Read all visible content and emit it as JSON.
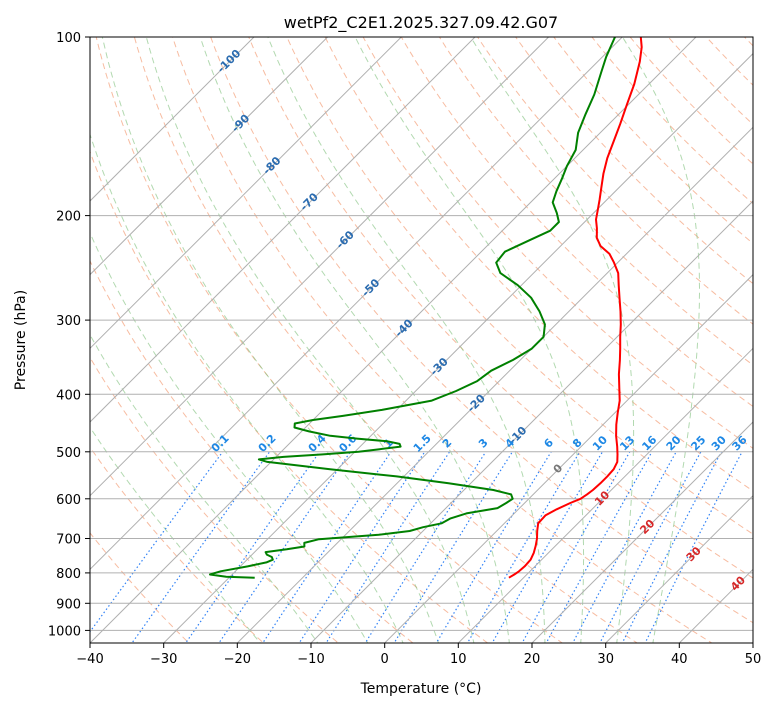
{
  "chart_data": {
    "type": "line",
    "subtype": "skew-t log-p",
    "title": "wetPf2_C2E1.2025.327.09.42.G07",
    "xlabel": "Temperature (°C)",
    "ylabel": "Pressure (hPa)",
    "xlim": [
      -40,
      50
    ],
    "ylim_hpa": [
      1050,
      100
    ],
    "x_ticks": [
      -40,
      -30,
      -20,
      -10,
      0,
      10,
      20,
      30,
      40,
      50
    ],
    "x_tick_labels": [
      "−40",
      "−30",
      "−20",
      "−10",
      "0",
      "10",
      "20",
      "30",
      "40",
      "50"
    ],
    "y_ticks": [
      100,
      200,
      300,
      400,
      500,
      600,
      700,
      800,
      900,
      1000
    ],
    "y_tick_labels": [
      "100",
      "200",
      "300",
      "400",
      "500",
      "600",
      "700",
      "800",
      "900",
      "1000"
    ],
    "isotherms": [
      -100,
      -90,
      -80,
      -70,
      -60,
      -50,
      -40,
      -30,
      -20,
      -10,
      0,
      10,
      20,
      30,
      40,
      50
    ],
    "isotherm_labels": [
      {
        "t": -100,
        "p": 110,
        "text": "-100",
        "color": "#2b6cb0"
      },
      {
        "t": -90,
        "p": 140,
        "text": "-90",
        "color": "#2b6cb0"
      },
      {
        "t": -80,
        "p": 165,
        "text": "-80",
        "color": "#2b6cb0"
      },
      {
        "t": -70,
        "p": 190,
        "text": "-70",
        "color": "#2b6cb0"
      },
      {
        "t": -60,
        "p": 220,
        "text": "-60",
        "color": "#2b6cb0"
      },
      {
        "t": -50,
        "p": 265,
        "text": "-50",
        "color": "#2b6cb0"
      },
      {
        "t": -40,
        "p": 310,
        "text": "-40",
        "color": "#2b6cb0"
      },
      {
        "t": -30,
        "p": 360,
        "text": "-30",
        "color": "#2b6cb0"
      },
      {
        "t": -20,
        "p": 415,
        "text": "-20",
        "color": "#2b6cb0"
      },
      {
        "t": -10,
        "p": 470,
        "text": "-10",
        "color": "#2b6cb0"
      },
      {
        "t": 0,
        "p": 535,
        "text": "0",
        "color": "#777777"
      },
      {
        "t": 10,
        "p": 600,
        "text": "10",
        "color": "#d62728"
      },
      {
        "t": 20,
        "p": 670,
        "text": "20",
        "color": "#d62728"
      },
      {
        "t": 30,
        "p": 745,
        "text": "30",
        "color": "#d62728"
      },
      {
        "t": 40,
        "p": 835,
        "text": "40",
        "color": "#d62728"
      }
    ],
    "dry_adiabats_theta_c": [
      -30,
      -20,
      -10,
      0,
      10,
      20,
      30,
      40,
      50,
      60,
      70,
      80,
      90,
      100,
      110,
      120,
      130,
      140,
      150,
      160,
      170,
      180,
      190,
      200,
      210,
      220,
      230,
      240
    ],
    "moist_adiabats_start_c": [
      -20,
      -12,
      -5,
      0,
      5,
      10,
      15,
      20,
      25,
      30,
      35
    ],
    "mixing_ratio_g_kg": [
      0.1,
      0.2,
      0.4,
      0.6,
      1,
      1.5,
      2,
      3,
      4,
      6,
      8,
      10,
      13,
      16,
      20,
      25,
      30,
      36
    ],
    "mixing_ratio_labels": [
      "0.1",
      "0.2",
      "0.4",
      "0.6",
      "1",
      "1.5",
      "2",
      "3",
      "4",
      "6",
      "8",
      "10",
      "13",
      "16",
      "20",
      "25",
      "30",
      "36"
    ],
    "series": [
      {
        "name": "Temperature",
        "color": "#ff0000",
        "pressure": [
          815,
          805,
          795,
          780,
          760,
          740,
          720,
          700,
          680,
          660,
          640,
          625,
          610,
          600,
          590,
          580,
          565,
          550,
          535,
          520,
          505,
          490,
          470,
          450,
          430,
          410,
          390,
          370,
          350,
          335,
          320,
          305,
          290,
          275,
          262,
          250,
          240,
          232,
          225,
          218,
          210,
          203,
          196,
          188,
          180,
          170,
          160,
          150,
          140,
          130,
          120,
          110,
          104,
          100
        ],
        "temperature": [
          8.0,
          8.3,
          8.5,
          8.6,
          8.5,
          8.0,
          7.3,
          6.5,
          5.5,
          4.6,
          4.5,
          5.2,
          6.2,
          7.0,
          7.3,
          7.5,
          7.6,
          7.6,
          7.5,
          7.0,
          6.0,
          4.9,
          3.3,
          1.8,
          0.4,
          -1.0,
          -2.8,
          -4.7,
          -6.5,
          -8.0,
          -9.6,
          -11.2,
          -13.0,
          -15.0,
          -16.8,
          -18.5,
          -20.5,
          -22.3,
          -24.6,
          -26.2,
          -27.5,
          -28.8,
          -29.8,
          -31.0,
          -32.3,
          -34.0,
          -35.6,
          -37.0,
          -38.5,
          -40.2,
          -42.0,
          -44.3,
          -46.0,
          -47.5
        ]
      },
      {
        "name": "Dewpoint",
        "color": "#008000",
        "pressure": [
          815,
          812,
          805,
          795,
          780,
          768,
          760,
          752,
          745,
          738,
          730,
          722,
          712,
          702,
          690,
          680,
          670,
          660,
          648,
          635,
          622,
          610,
          600,
          590,
          580,
          565,
          550,
          535,
          520,
          515,
          510,
          505,
          500,
          495,
          490,
          485,
          480,
          475,
          470,
          462,
          455,
          448,
          442,
          435,
          425,
          410,
          395,
          380,
          365,
          350,
          335,
          320,
          305,
          290,
          275,
          262,
          250,
          240,
          230,
          220,
          212,
          205,
          198,
          190,
          182,
          173,
          165,
          155,
          145,
          135,
          125,
          115,
          108,
          100
        ],
        "temperature": [
          -26.5,
          -30.5,
          -33.0,
          -32.0,
          -29.0,
          -27.0,
          -26.5,
          -27.0,
          -28.0,
          -28.5,
          -26.0,
          -24.0,
          -24.5,
          -23.0,
          -15.5,
          -11.8,
          -10.5,
          -8.5,
          -8.0,
          -6.5,
          -3.0,
          -2.5,
          -2.2,
          -3.0,
          -6.0,
          -13.0,
          -21.0,
          -31.0,
          -40.5,
          -42.0,
          -39.0,
          -34.0,
          -29.5,
          -27.0,
          -24.5,
          -25.0,
          -27.0,
          -31.5,
          -35.5,
          -39.0,
          -41.5,
          -42.0,
          -40.0,
          -36.5,
          -32.0,
          -26.5,
          -24.5,
          -23.0,
          -22.5,
          -21.0,
          -20.0,
          -20.0,
          -21.5,
          -24.0,
          -27.0,
          -30.5,
          -34.5,
          -36.5,
          -36.8,
          -35.0,
          -33.5,
          -33.5,
          -35.0,
          -37.0,
          -38.0,
          -39.0,
          -40.0,
          -41.0,
          -43.0,
          -44.5,
          -46.0,
          -48.0,
          -49.5,
          -51.0
        ]
      }
    ]
  },
  "colors": {
    "frame": "#000000",
    "grid": "#b0b0b0",
    "dry_adiabat": "#f4a582",
    "moist_adiabat": "#7fbf7b",
    "mixing_ratio": "#3182f6",
    "mixing_label": "#1e88e5",
    "surface_arc": "#c8b48c"
  }
}
